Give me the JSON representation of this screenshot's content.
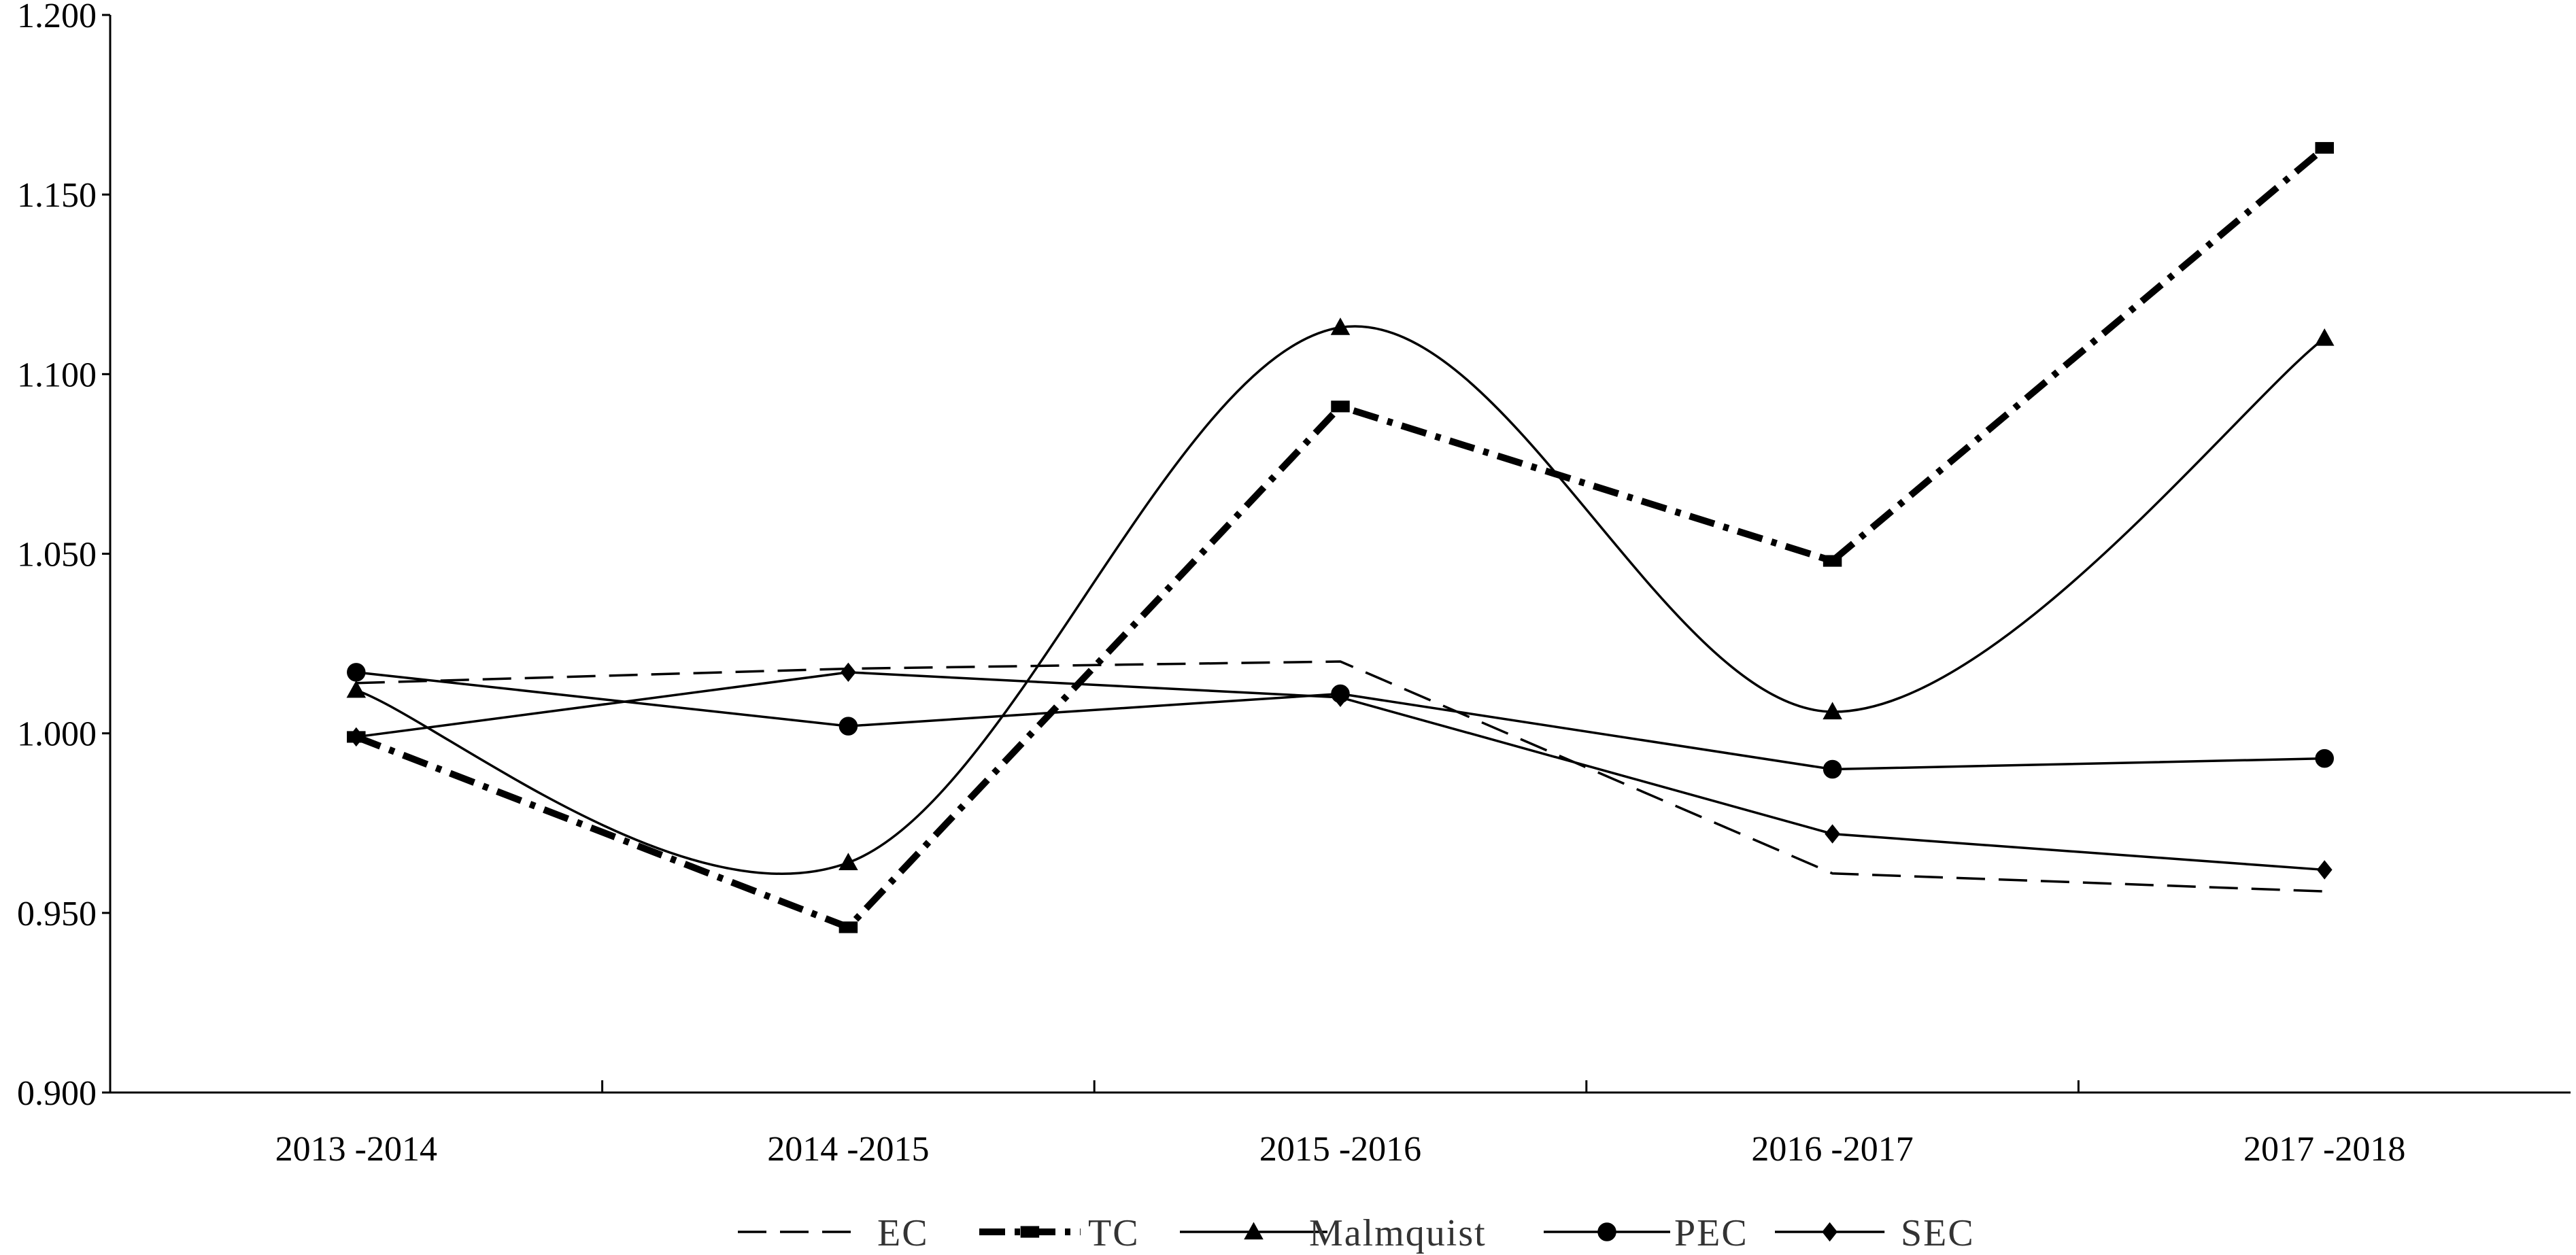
{
  "chart_data": {
    "type": "line",
    "title": "",
    "xlabel": "",
    "ylabel": "",
    "categories": [
      "2013 -2014",
      "2014 -2015",
      "2015 -2016",
      "2016 -2017",
      "2017 -2018"
    ],
    "ylim": [
      0.9,
      1.2
    ],
    "yticks": [
      "0.900",
      "0.950",
      "1.000",
      "1.050",
      "1.100",
      "1.150",
      "1.200"
    ],
    "grid": false,
    "legend_position": "bottom",
    "series": [
      {
        "name": "EC",
        "values": [
          1.014,
          1.018,
          1.02,
          0.961,
          0.956
        ],
        "style": "dashed",
        "marker": "none",
        "color": "#000000"
      },
      {
        "name": "TC",
        "values": [
          0.999,
          0.946,
          1.091,
          1.048,
          1.163
        ],
        "style": "dash-dot",
        "marker": "square",
        "color": "#000000"
      },
      {
        "name": "Malmquist",
        "values": [
          1.012,
          0.964,
          1.113,
          1.006,
          1.11
        ],
        "style": "solid",
        "marker": "triangle",
        "color": "#000000"
      },
      {
        "name": "PEC",
        "values": [
          1.017,
          1.002,
          1.011,
          0.99,
          0.993
        ],
        "style": "solid",
        "marker": "circle",
        "color": "#000000"
      },
      {
        "name": "SEC",
        "values": [
          0.999,
          1.017,
          1.01,
          0.972,
          0.962
        ],
        "style": "solid",
        "marker": "diamond",
        "color": "#000000"
      }
    ]
  }
}
